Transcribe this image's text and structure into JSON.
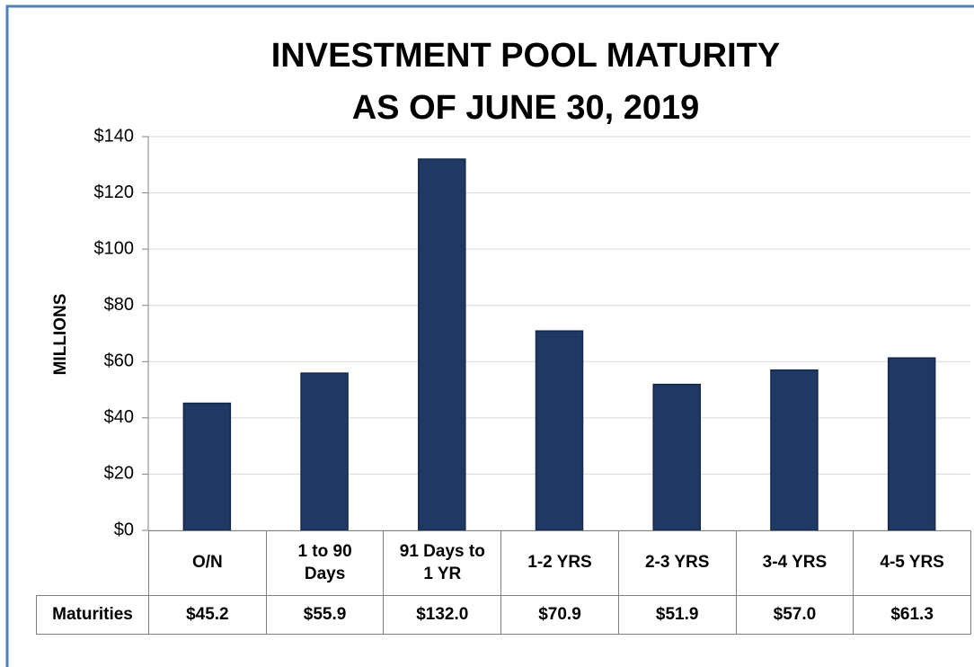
{
  "chart_data": {
    "type": "bar",
    "title": "INVESTMENT POOL MATURITY",
    "subtitle": "AS OF JUNE 30, 2019",
    "y_label": "MILLIONS",
    "categories": [
      "O/N",
      "1 to 90 Days",
      "91 Days to 1 YR",
      "1-2 YRS",
      "2-3 YRS",
      "3-4 YRS",
      "4-5 YRS"
    ],
    "series": [
      {
        "name": "Maturities",
        "color": "#1f3864",
        "values": [
          45.2,
          55.9,
          132.0,
          70.9,
          51.9,
          57.0,
          61.3
        ],
        "value_labels": [
          "$45.2",
          "$55.9",
          "$132.0",
          "$70.9",
          "$51.9",
          "$57.0",
          "$61.3"
        ]
      }
    ],
    "ylim": [
      0,
      140
    ],
    "yticks": [
      {
        "value": 0,
        "label": "$0"
      },
      {
        "value": 20,
        "label": "$20"
      },
      {
        "value": 40,
        "label": "$40"
      },
      {
        "value": 60,
        "label": "$60"
      },
      {
        "value": 80,
        "label": "$80"
      },
      {
        "value": 100,
        "label": "$100"
      },
      {
        "value": 120,
        "label": "$120"
      },
      {
        "value": 140,
        "label": "$140"
      }
    ],
    "grid": true
  }
}
